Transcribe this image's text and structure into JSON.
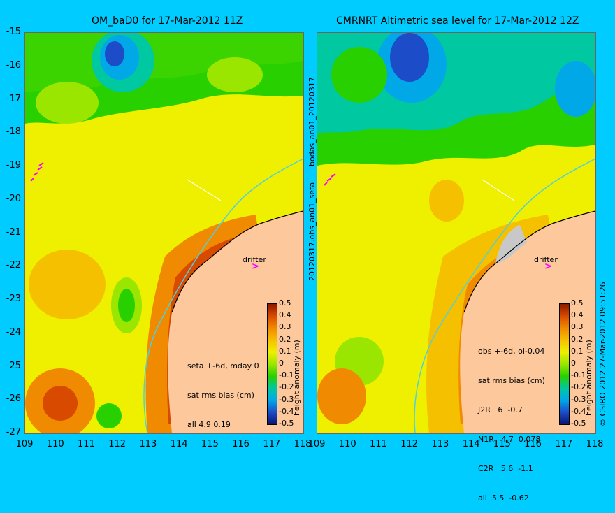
{
  "titles": {
    "left": "OM_baD0 for 17-Mar-2012 11Z",
    "right": "CMRNRT Altimetric sea level  for 17-Mar-2012 12Z"
  },
  "axes": {
    "lat_labels": [
      "-15",
      "-16",
      "-17",
      "-18",
      "-19",
      "-20",
      "-21",
      "-22",
      "-23",
      "-24",
      "-25",
      "-26",
      "-27"
    ],
    "lon_labels": [
      "109",
      "110",
      "111",
      "112",
      "113",
      "114",
      "115",
      "116",
      "117",
      "118"
    ]
  },
  "side_labels": {
    "middle_top": "bodas_an01_20120317",
    "middle_bottom": "20120317.obs_an01_seta",
    "right_edge": "© CSIRO 2012   27-Mar-2012 09:51:26"
  },
  "left_panel": {
    "stats": [
      "seta +-6d, mday 0",
      "sat rms bias (cm)",
      "all 4.9 0.19"
    ],
    "drifter_label": "drifter"
  },
  "right_panel": {
    "stats": [
      "obs +-6d, oi-0.04",
      "sat rms bias (cm)",
      "J2R   6  -0.7",
      "N1R   4.7  0.078",
      "C2R   5.6  -1.1",
      "all  5.5  -0.62"
    ],
    "drifter_label": "drifter"
  },
  "colorbar": {
    "title": "height anomaly (m)",
    "ticks": [
      "0.5",
      "0.4",
      "0.3",
      "0.2",
      "0.1",
      "0",
      "-0.1",
      "-0.2",
      "-0.3",
      "-0.4",
      "-0.5"
    ],
    "colors": [
      "#8b1a00",
      "#d84a00",
      "#f08a00",
      "#f5c000",
      "#eef000",
      "#9ae600",
      "#28d000",
      "#00c8a0",
      "#00a8e8",
      "#1c4cc8",
      "#0a1470"
    ]
  },
  "colors": {
    "background": "#00ccff",
    "land": "#fcc89c",
    "coast_current": "#4fd0e0"
  }
}
